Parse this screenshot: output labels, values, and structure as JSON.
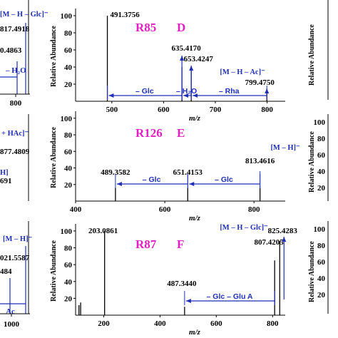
{
  "chart_data": [
    {
      "type": "bar",
      "panel": "D",
      "title_compound": "R85",
      "title_letter": "D",
      "xlabel": "m/z",
      "ylabel": "Relative Abundance",
      "xlim": [
        430,
        835
      ],
      "ylim": [
        0,
        105
      ],
      "xticks": [
        "500",
        "600",
        "700",
        "800"
      ],
      "yticks": [
        "20",
        "40",
        "60",
        "80",
        "100"
      ],
      "peaks": [
        {
          "mz": 491.3756,
          "value": 100,
          "label": "491.3756"
        },
        {
          "mz": 635.417,
          "value": 40,
          "label": "635.4170"
        },
        {
          "mz": 653.4247,
          "value": 38,
          "label": "653.4247"
        },
        {
          "mz": 799.475,
          "value": 12,
          "label": "799.4750"
        }
      ],
      "precursor": "[M – H – Ac]⁻",
      "losses": [
        {
          "from": 491.3756,
          "to": 635.417,
          "label": "– Glc"
        },
        {
          "from": 635.417,
          "to": 653.4247,
          "label": "– H₂O"
        },
        {
          "from": 653.4247,
          "to": 799.475,
          "label": "– Rha"
        }
      ]
    },
    {
      "type": "bar",
      "panel": "E",
      "title_compound": "R126",
      "title_letter": "E",
      "xlabel": "m/z",
      "ylabel": "Relative Abundance",
      "xlim": [
        400,
        870
      ],
      "ylim": [
        0,
        105
      ],
      "xticks": [
        "400",
        "600",
        "800"
      ],
      "yticks": [
        "20",
        "40",
        "60",
        "80",
        "100"
      ],
      "peaks": [
        {
          "mz": 489.3582,
          "value": 16,
          "label": "489.3582"
        },
        {
          "mz": 651.4153,
          "value": 16,
          "label": "651.4153"
        },
        {
          "mz": 813.4616,
          "value": 16,
          "label": "813.4616"
        }
      ],
      "precursor": "[M – H]⁻",
      "losses": [
        {
          "from": 489.3582,
          "to": 651.4153,
          "label": "– Glc"
        },
        {
          "from": 651.4153,
          "to": 813.4616,
          "label": "– Glc"
        }
      ]
    },
    {
      "type": "bar",
      "panel": "F",
      "title_compound": "R87",
      "title_letter": "F",
      "xlabel": "m/z",
      "ylabel": "Relative Abundance",
      "xlim": [
        100,
        845
      ],
      "ylim": [
        0,
        105
      ],
      "xticks": [
        "200",
        "400",
        "600",
        "800"
      ],
      "yticks": [
        "20",
        "40",
        "60",
        "80",
        "100"
      ],
      "peaks": [
        {
          "mz": 112,
          "value": 12,
          "label": ""
        },
        {
          "mz": 118,
          "value": 15,
          "label": ""
        },
        {
          "mz": 203.0861,
          "value": 100,
          "label": "203.0861"
        },
        {
          "mz": 487.344,
          "value": 10,
          "label": "487.3440"
        },
        {
          "mz": 807.4205,
          "value": 65,
          "label": "807.4205"
        },
        {
          "mz": 825.4283,
          "value": 88,
          "label": "825.4283"
        }
      ],
      "precursor": "[M – H – Glc]⁻",
      "losses": [
        {
          "from": 487.344,
          "to": 807.4205,
          "label": "– Glc – Glu A"
        }
      ]
    }
  ],
  "left_fragments": {
    "row1_ion": "[M – H – Glc]⁻",
    "row1_label_a": "817.4918",
    "row1_label_b": "0.4863",
    "row1_loss": "– H₂O",
    "row1_tick": "800",
    "row2_ion": "+ HAc]⁻",
    "row2_label_a": "877.4809",
    "row2_ion_b": "H]",
    "row2_label_b": "691",
    "row3_ion": "[M – H]⁻",
    "row3_label_a": "021.5587",
    "row3_label_b": "484",
    "row3_loss": "Ac",
    "row3_tick": "1000"
  },
  "right_fragments": {
    "ytick_100": "100",
    "ytick_80": "80",
    "ytick_60": "60",
    "ytick_40": "40",
    "ytick_20": "20",
    "ylabel": "Relative Abundance"
  }
}
